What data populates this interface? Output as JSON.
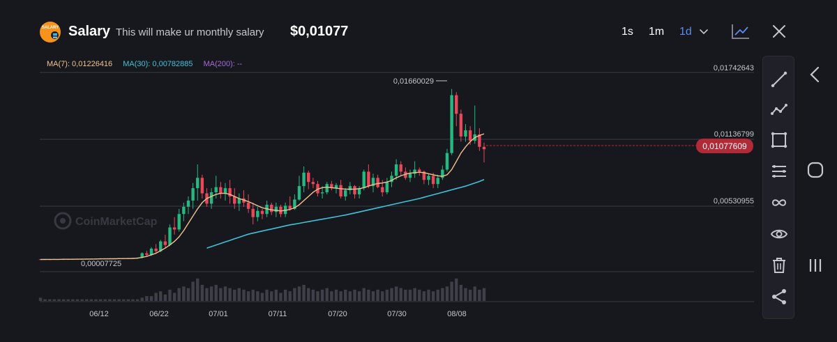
{
  "header": {
    "logo_text": "SALARY",
    "title": "Salary",
    "subtitle": "This will make ur monthly salary",
    "price": "$0,01077",
    "timeframes": [
      "1s",
      "1m",
      "1d"
    ],
    "active_timeframe": "1d"
  },
  "ma_legend": {
    "ma7": "MA(7): 0,01226416",
    "ma30": "MA(30): 0,00782885",
    "ma200": "MA(200): --"
  },
  "colors": {
    "up": "#26b881",
    "down": "#e8485a",
    "ma7": "#f2c38f",
    "ma30": "#3fc3d9",
    "ma200": "#a66ad9",
    "accent": "#5b8def",
    "price_tag": "#b02a37",
    "grid": "#3a3b44",
    "volume": "#3e3f48"
  },
  "watermark": "CoinMarketCap",
  "price_labels": [
    "0,01742643",
    "0,01136799",
    "0,00530955"
  ],
  "current_price_tag": "0,01077609",
  "high_label": "0,01660029",
  "low_label": "0,00007725",
  "icons": {
    "toolbar": [
      "line-tool-icon",
      "polyline-tool-icon",
      "rectangle-tool-icon",
      "hamburger-lines-icon",
      "infinity-icon",
      "eye-icon",
      "trash-icon",
      "share-icon"
    ],
    "system": [
      "back-icon",
      "home-icon",
      "recent-apps-icon"
    ]
  },
  "chart_data": {
    "type": "candlestick",
    "x_labels": [
      "06/12",
      "06/22",
      "07/01",
      "07/11",
      "07/20",
      "07/30",
      "08/08"
    ],
    "y_labels": [
      "0,01742643",
      "0,01136799",
      "0,00530955"
    ],
    "ylim": [
      0.0,
      0.0182
    ],
    "candles": [
      [
        0.00012,
        0.00012,
        8e-05,
        0.0001
      ],
      [
        0.0001,
        0.00014,
        8e-05,
        0.00012
      ],
      [
        0.00012,
        0.00013,
        9e-05,
        0.0001
      ],
      [
        0.0001,
        0.00016,
        9e-05,
        0.00014
      ],
      [
        0.00014,
        0.00014,
        8e-05,
        9e-05
      ],
      [
        9e-05,
        0.00015,
        8e-05,
        0.00013
      ],
      [
        0.00013,
        0.00014,
        9e-05,
        0.00011
      ],
      [
        0.00011,
        0.00017,
        9e-05,
        0.00015
      ],
      [
        0.00015,
        0.00016,
        0.0001,
        0.00012
      ],
      [
        0.00012,
        0.00018,
        0.0001,
        0.00016
      ],
      [
        0.00016,
        0.00018,
        0.00011,
        0.00013
      ],
      [
        0.00013,
        0.0002,
        0.00012,
        0.00018
      ],
      [
        0.00018,
        0.0002,
        0.00012,
        0.00014
      ],
      [
        0.00014,
        0.00021,
        0.00012,
        0.00019
      ],
      [
        0.00019,
        0.00022,
        0.00013,
        0.00016
      ],
      [
        0.00016,
        0.00022,
        0.00014,
        0.0002
      ],
      [
        0.0002,
        0.00023,
        0.00015,
        0.00017
      ],
      [
        0.00017,
        0.00024,
        0.00015,
        0.00022
      ],
      [
        0.00022,
        0.00024,
        0.00016,
        0.00018
      ],
      [
        0.00018,
        0.00025,
        0.00016,
        0.00024
      ],
      [
        0.00024,
        0.00026,
        0.00017,
        0.0002
      ],
      [
        0.0002,
        0.0003,
        0.00018,
        0.00028
      ],
      [
        0.00028,
        0.0008,
        0.0002,
        0.0007
      ],
      [
        0.0007,
        0.00095,
        0.0004,
        0.00055
      ],
      [
        0.00055,
        0.0013,
        0.00045,
        0.00115
      ],
      [
        0.00115,
        0.0016,
        0.0007,
        0.0009
      ],
      [
        0.0009,
        0.002,
        0.0008,
        0.00185
      ],
      [
        0.00185,
        0.0025,
        0.0012,
        0.0015
      ],
      [
        0.0015,
        0.0035,
        0.0014,
        0.0032
      ],
      [
        0.0032,
        0.0042,
        0.0025,
        0.003
      ],
      [
        0.003,
        0.005,
        0.0028,
        0.0045
      ],
      [
        0.0045,
        0.0056,
        0.0038,
        0.0052
      ],
      [
        0.0052,
        0.0062,
        0.0045,
        0.0058
      ],
      [
        0.0058,
        0.0075,
        0.005,
        0.007
      ],
      [
        0.007,
        0.0093,
        0.0058,
        0.008
      ],
      [
        0.008,
        0.0083,
        0.006,
        0.0065
      ],
      [
        0.0065,
        0.007,
        0.0052,
        0.0055
      ],
      [
        0.0055,
        0.007,
        0.005,
        0.0066
      ],
      [
        0.0066,
        0.0082,
        0.006,
        0.0071
      ],
      [
        0.0071,
        0.0076,
        0.006,
        0.0065
      ],
      [
        0.0065,
        0.0075,
        0.0058,
        0.007
      ],
      [
        0.007,
        0.0078,
        0.0055,
        0.0062
      ],
      [
        0.0062,
        0.007,
        0.005,
        0.0055
      ],
      [
        0.0055,
        0.0065,
        0.0048,
        0.006
      ],
      [
        0.006,
        0.0068,
        0.0052,
        0.0056
      ],
      [
        0.0056,
        0.0064,
        0.0046,
        0.005
      ],
      [
        0.005,
        0.0056,
        0.0035,
        0.0042
      ],
      [
        0.0042,
        0.0052,
        0.0038,
        0.0048
      ],
      [
        0.0048,
        0.005,
        0.004,
        0.0045
      ],
      [
        0.0045,
        0.0058,
        0.0042,
        0.0054
      ],
      [
        0.0054,
        0.0056,
        0.0044,
        0.0047
      ],
      [
        0.0047,
        0.0056,
        0.0042,
        0.0052
      ],
      [
        0.0052,
        0.0054,
        0.0042,
        0.0045
      ],
      [
        0.0045,
        0.0056,
        0.0042,
        0.0053
      ],
      [
        0.0053,
        0.0062,
        0.0048,
        0.005
      ],
      [
        0.005,
        0.0064,
        0.0049,
        0.0059
      ],
      [
        0.0059,
        0.0082,
        0.0058,
        0.0072
      ],
      [
        0.0072,
        0.0091,
        0.0066,
        0.0085
      ],
      [
        0.0085,
        0.0087,
        0.0069,
        0.0076
      ],
      [
        0.0076,
        0.008,
        0.007,
        0.0074
      ],
      [
        0.0074,
        0.0077,
        0.0062,
        0.0065
      ],
      [
        0.0065,
        0.0072,
        0.006,
        0.0066
      ],
      [
        0.0066,
        0.0076,
        0.0064,
        0.0074
      ],
      [
        0.0074,
        0.0077,
        0.0068,
        0.007
      ],
      [
        0.007,
        0.0075,
        0.0065,
        0.0073
      ],
      [
        0.0073,
        0.0078,
        0.006,
        0.0062
      ],
      [
        0.0062,
        0.007,
        0.0058,
        0.0068
      ],
      [
        0.0068,
        0.0076,
        0.0064,
        0.0072
      ],
      [
        0.0072,
        0.0073,
        0.006,
        0.0064
      ],
      [
        0.0064,
        0.0072,
        0.006,
        0.007
      ],
      [
        0.007,
        0.0088,
        0.0068,
        0.0086
      ],
      [
        0.0086,
        0.0093,
        0.007,
        0.0072
      ],
      [
        0.0072,
        0.0084,
        0.0066,
        0.008
      ],
      [
        0.008,
        0.0083,
        0.007,
        0.0071
      ],
      [
        0.0071,
        0.0078,
        0.0062,
        0.0066
      ],
      [
        0.0066,
        0.008,
        0.0064,
        0.0076
      ],
      [
        0.0076,
        0.0086,
        0.0071,
        0.0082
      ],
      [
        0.0082,
        0.0098,
        0.0078,
        0.0093
      ],
      [
        0.0093,
        0.0096,
        0.0082,
        0.0086
      ],
      [
        0.0086,
        0.009,
        0.0078,
        0.008
      ],
      [
        0.008,
        0.0088,
        0.0076,
        0.0084
      ],
      [
        0.0084,
        0.0096,
        0.008,
        0.0088
      ],
      [
        0.0088,
        0.009,
        0.0082,
        0.0086
      ],
      [
        0.0086,
        0.0087,
        0.0074,
        0.0078
      ],
      [
        0.0078,
        0.0084,
        0.0073,
        0.0082
      ],
      [
        0.0082,
        0.0085,
        0.007,
        0.0074
      ],
      [
        0.0074,
        0.0083,
        0.007,
        0.008
      ],
      [
        0.008,
        0.0092,
        0.0078,
        0.0088
      ],
      [
        0.0088,
        0.0108,
        0.0086,
        0.0104
      ],
      [
        0.0104,
        0.0166,
        0.0102,
        0.016
      ],
      [
        0.016,
        0.0163,
        0.013,
        0.0142
      ],
      [
        0.0142,
        0.0146,
        0.0115,
        0.012
      ],
      [
        0.012,
        0.0132,
        0.0115,
        0.0126
      ],
      [
        0.0126,
        0.013,
        0.0112,
        0.0116
      ],
      [
        0.0116,
        0.015,
        0.0113,
        0.0122
      ],
      [
        0.0122,
        0.0128,
        0.0106,
        0.011
      ],
      [
        0.011,
        0.0114,
        0.0095,
        0.01077
      ]
    ],
    "volumes": [
      2,
      1,
      1,
      1,
      1,
      1,
      1,
      1,
      1,
      1,
      1,
      1,
      1,
      1,
      1,
      1,
      1,
      1,
      1,
      1,
      1,
      1,
      2,
      3,
      3,
      5,
      6,
      4,
      7,
      5,
      8,
      9,
      8,
      12,
      14,
      10,
      8,
      9,
      10,
      8,
      9,
      8,
      7,
      8,
      7,
      6,
      7,
      6,
      5,
      7,
      6,
      7,
      5,
      7,
      6,
      8,
      9,
      10,
      8,
      7,
      6,
      7,
      8,
      6,
      7,
      6,
      7,
      6,
      7,
      6,
      8,
      7,
      6,
      7,
      6,
      7,
      8,
      9,
      8,
      7,
      7,
      8,
      7,
      6,
      7,
      6,
      7,
      8,
      9,
      12,
      14,
      10,
      8,
      7,
      9,
      7,
      8
    ],
    "ma7": [
      0.0001,
      0.00011,
      0.00011,
      0.00011,
      0.00011,
      0.00012,
      0.00012,
      0.00012,
      0.00013,
      0.00013,
      0.00014,
      0.00014,
      0.00015,
      0.00016,
      0.00016,
      0.00017,
      0.00017,
      0.00018,
      0.00019,
      0.00019,
      0.0002,
      0.00022,
      0.0003,
      0.0004,
      0.00055,
      0.0007,
      0.00095,
      0.0012,
      0.0015,
      0.00185,
      0.0023,
      0.0029,
      0.0036,
      0.0043,
      0.005,
      0.0056,
      0.006,
      0.0062,
      0.0064,
      0.0065,
      0.0065,
      0.0064,
      0.0062,
      0.006,
      0.00585,
      0.0057,
      0.0055,
      0.0053,
      0.0051,
      0.005,
      0.0049,
      0.00485,
      0.0048,
      0.00485,
      0.00495,
      0.0051,
      0.0054,
      0.0058,
      0.0062,
      0.0066,
      0.0069,
      0.00705,
      0.0071,
      0.00705,
      0.007,
      0.00695,
      0.0069,
      0.0069,
      0.0069,
      0.00695,
      0.00705,
      0.0072,
      0.00735,
      0.00745,
      0.0075,
      0.0076,
      0.00775,
      0.008,
      0.0082,
      0.00835,
      0.00845,
      0.0085,
      0.00855,
      0.0085,
      0.0084,
      0.0083,
      0.0082,
      0.00815,
      0.0083,
      0.0088,
      0.0096,
      0.0104,
      0.011,
      0.0115,
      0.0119,
      0.0121,
      0.01226
    ],
    "ma30": [
      0.0012,
      0.00135,
      0.0015,
      0.00165,
      0.0018,
      0.00195,
      0.0021,
      0.00225,
      0.0024,
      0.00255,
      0.00265,
      0.00275,
      0.00285,
      0.00295,
      0.00305,
      0.00315,
      0.00325,
      0.00335,
      0.00345,
      0.00352,
      0.0036,
      0.00368,
      0.00376,
      0.00384,
      0.00392,
      0.004,
      0.00408,
      0.00416,
      0.00424,
      0.00432,
      0.0044,
      0.0045,
      0.0046,
      0.0047,
      0.0048,
      0.0049,
      0.005,
      0.0051,
      0.0052,
      0.0053,
      0.0054,
      0.0055,
      0.0056,
      0.0057,
      0.0058,
      0.0059,
      0.006,
      0.00612,
      0.00624,
      0.00636,
      0.00648,
      0.0066,
      0.00672,
      0.00684,
      0.00696,
      0.00708,
      0.0072,
      0.00735,
      0.0075,
      0.00765,
      0.00783
    ],
    "ma30_start_index": 36
  }
}
